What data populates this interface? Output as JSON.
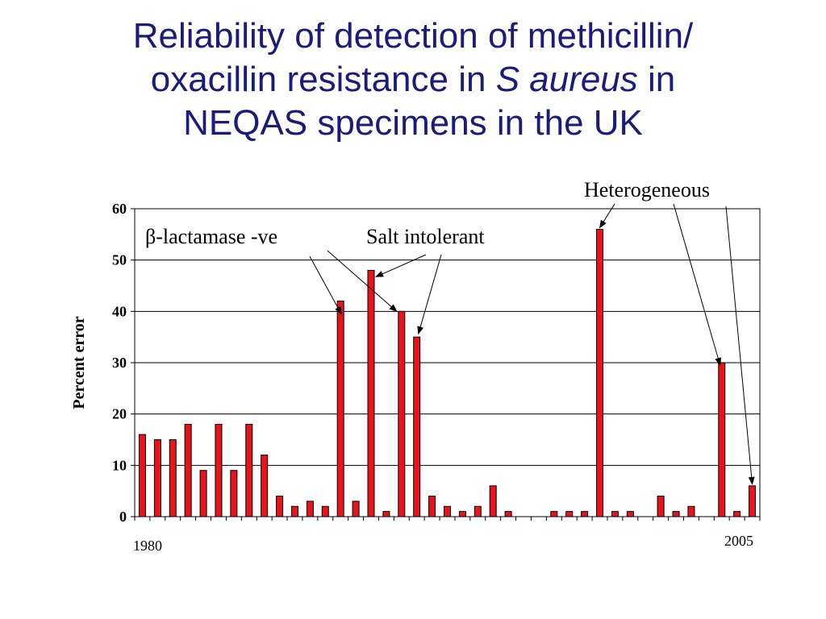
{
  "title": {
    "line1": "Reliability of detection of methicillin/",
    "line2_pre": "oxacillin resistance in ",
    "line2_italic": "S aureus",
    "line2_post": " in",
    "line3": "NEQAS specimens in the UK"
  },
  "chart_data": {
    "type": "bar",
    "ylabel": "Percent error",
    "xlabel": "",
    "ylim": [
      0,
      60
    ],
    "yticks": [
      0,
      10,
      20,
      30,
      40,
      50,
      60
    ],
    "grid": true,
    "bar_color": "#e8141b",
    "x_first_label": "1980",
    "x_last_label": "2005",
    "values": [
      16,
      15,
      15,
      18,
      9,
      18,
      9,
      18,
      12,
      4,
      2,
      3,
      2,
      42,
      3,
      48,
      1,
      40,
      35,
      4,
      2,
      1,
      2,
      6,
      1,
      0,
      0,
      1,
      1,
      1,
      56,
      1,
      1,
      0,
      4,
      1,
      2,
      0,
      30,
      1,
      6
    ],
    "annotations": [
      {
        "text": "β-lactamase -ve",
        "targets": [
          13,
          17
        ]
      },
      {
        "text": "Salt intolerant",
        "targets": [
          15,
          18
        ]
      },
      {
        "text": "Heterogeneous",
        "targets": [
          30,
          38,
          40
        ]
      }
    ]
  }
}
